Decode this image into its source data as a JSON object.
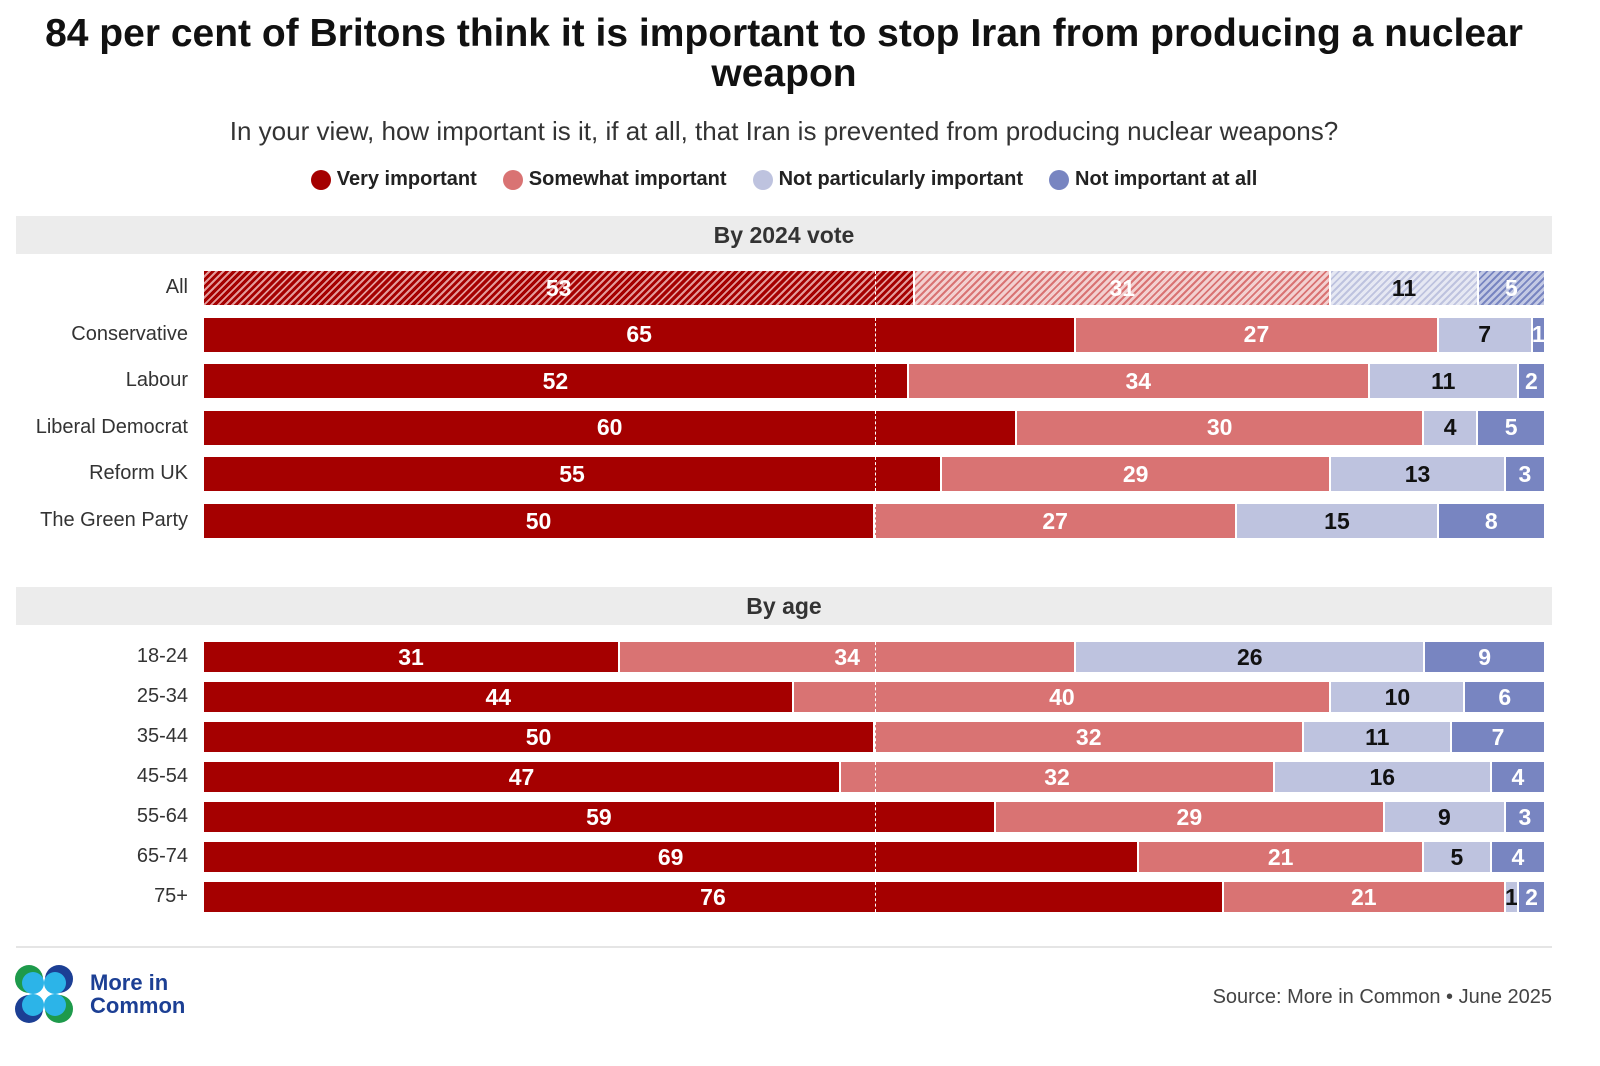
{
  "header": {
    "title": "84 per cent of Britons think it is important to stop Iran from producing a nuclear weapon",
    "subtitle": "In your view, how important is it, if at all, that Iran is prevented from producing nuclear weapons?"
  },
  "footer": {
    "logo_line1": "More in",
    "logo_line2": "Common",
    "source": "Source: More in Common • June 2025"
  },
  "chart_data": {
    "type": "bar",
    "orientation": "horizontal-stacked-100",
    "title": "84 per cent of Britons think it is important to stop Iran from producing a nuclear weapon",
    "subtitle": "In your view, how important is it, if at all, that Iran is prevented from producing nuclear weapons?",
    "legend_position": "top",
    "xlim": [
      0,
      100
    ],
    "reference_line": 50,
    "series": [
      {
        "name": "Very important",
        "color": "#a50000",
        "label_color": "#ffffff"
      },
      {
        "name": "Somewhat important",
        "color": "#d97373",
        "label_color": "#ffffff"
      },
      {
        "name": "Not particularly important",
        "color": "#bec3df",
        "label_color": "#111111"
      },
      {
        "name": "Not important at all",
        "color": "#7885c1",
        "label_color": "#ffffff"
      }
    ],
    "groups": [
      {
        "title": "By 2024 vote",
        "rows": [
          {
            "label": "All",
            "values": [
              53,
              31,
              11,
              5
            ],
            "hatched": true
          },
          {
            "label": "Conservative",
            "values": [
              65,
              27,
              7,
              1
            ]
          },
          {
            "label": "Labour",
            "values": [
              52,
              34,
              11,
              2
            ]
          },
          {
            "label": "Liberal Democrat",
            "values": [
              60,
              30,
              4,
              5
            ]
          },
          {
            "label": "Reform UK",
            "values": [
              55,
              29,
              13,
              3
            ]
          },
          {
            "label": "The Green Party",
            "values": [
              50,
              27,
              15,
              8
            ]
          }
        ]
      },
      {
        "title": "By age",
        "rows": [
          {
            "label": "18-24",
            "values": [
              31,
              34,
              26,
              9
            ]
          },
          {
            "label": "25-34",
            "values": [
              44,
              40,
              10,
              6
            ]
          },
          {
            "label": "35-44",
            "values": [
              50,
              32,
              11,
              7
            ]
          },
          {
            "label": "45-54",
            "values": [
              47,
              32,
              16,
              4
            ]
          },
          {
            "label": "55-64",
            "values": [
              59,
              29,
              9,
              3
            ]
          },
          {
            "label": "65-74",
            "values": [
              69,
              21,
              5,
              4
            ]
          },
          {
            "label": "75+",
            "values": [
              76,
              21,
              1,
              2
            ]
          }
        ]
      }
    ]
  }
}
